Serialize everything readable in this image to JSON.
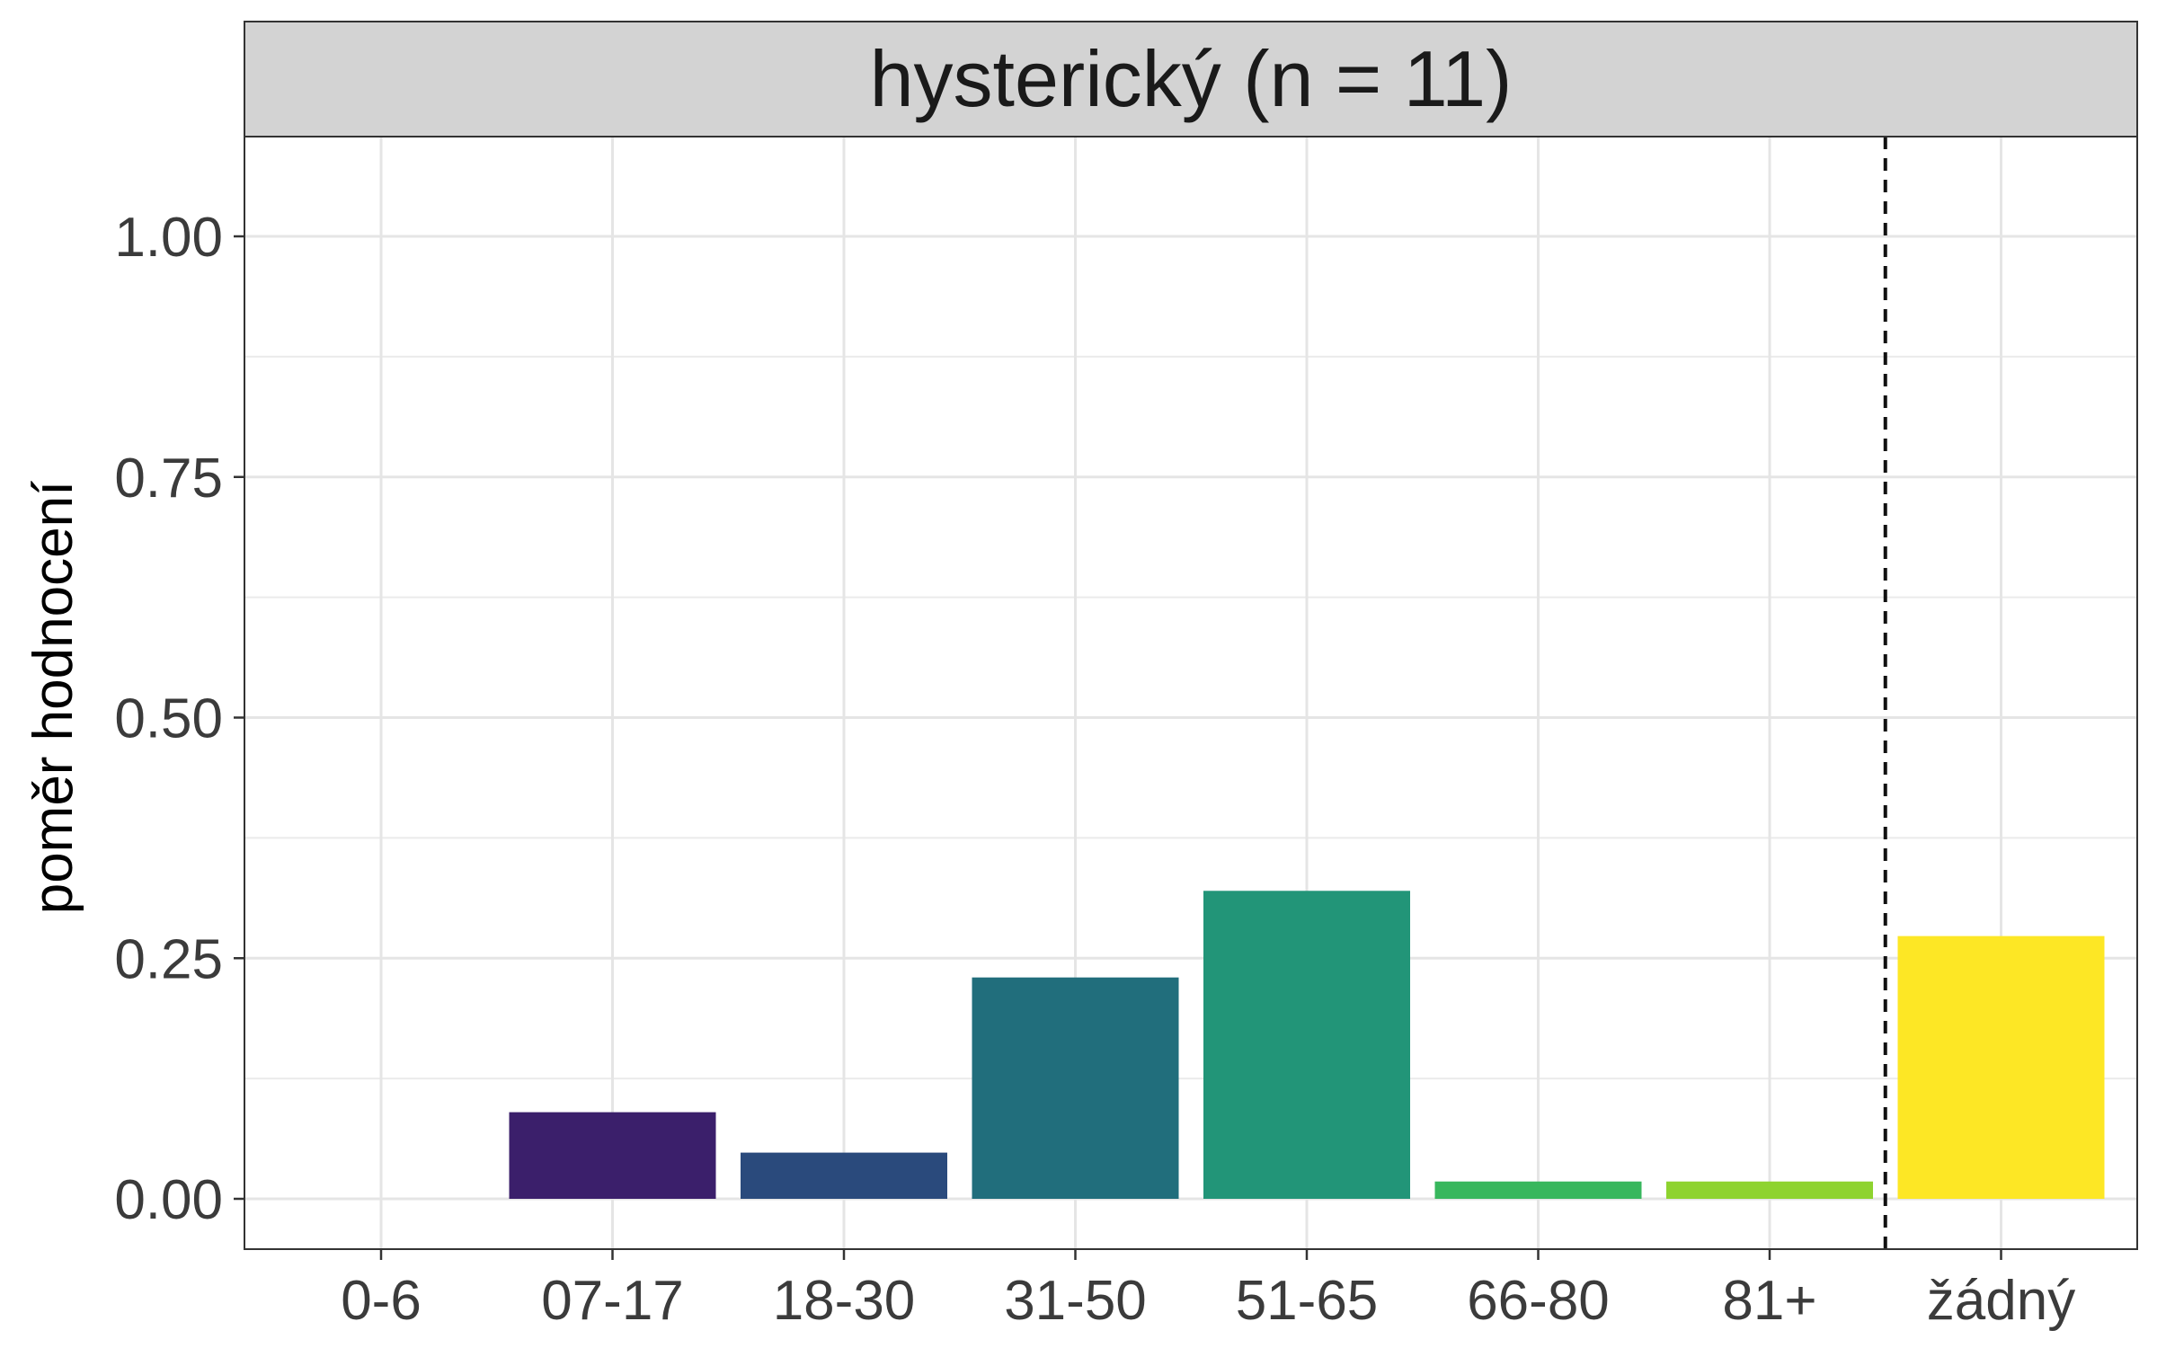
{
  "chart_data": {
    "type": "bar",
    "facet_title": "hysterický (n = 11)",
    "xlabel": "",
    "ylabel": "poměr hodnocení",
    "categories": [
      "0-6",
      "07-17",
      "18-30",
      "31-50",
      "51-65",
      "66-80",
      "81+",
      "žádný"
    ],
    "values": [
      0.0,
      0.09,
      0.048,
      0.23,
      0.32,
      0.018,
      0.018,
      0.273
    ],
    "colors": [
      "#440154",
      "#3b1f6b",
      "#2a4a7c",
      "#216e7c",
      "#229578",
      "#38b75d",
      "#8ed32f",
      "#fde725"
    ],
    "ylim": [
      -0.05,
      1.1
    ],
    "yticks": [
      0.0,
      0.25,
      0.5,
      0.75,
      1.0
    ],
    "ytick_labels": [
      "0.00",
      "0.25",
      "0.50",
      "0.75",
      "1.00"
    ],
    "divider_after_category": "81+",
    "grid": true,
    "legend": "none"
  }
}
